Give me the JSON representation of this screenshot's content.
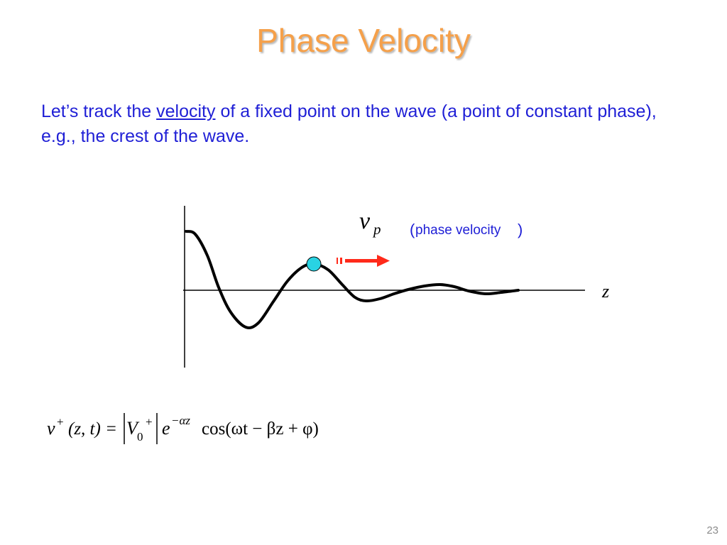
{
  "title": "Phase Velocity",
  "intro": {
    "before": "Let’s track the ",
    "underlined": "velocity",
    "after": " of a fixed point on the wave (a point of constant phase), e.g., the crest of the wave."
  },
  "diagram": {
    "vp_symbol": "v",
    "vp_subscript": "p",
    "vp_caption_open": "(",
    "vp_caption_text": "phase velocity",
    "vp_caption_close": ")",
    "z_axis_label": "z",
    "colors": {
      "wave": "#000000",
      "crest_marker": "#29d3e3",
      "arrow": "#ff2a1a"
    }
  },
  "formula": {
    "v": "v",
    "sup_plus": "+",
    "args": "(z, t) =",
    "V": "V",
    "sub_zero": "0",
    "sup_plus2": "+",
    "e": "e",
    "exp": "−αz",
    "cos_part": "cos(ωt − βz + φ)"
  },
  "page_number": "23"
}
